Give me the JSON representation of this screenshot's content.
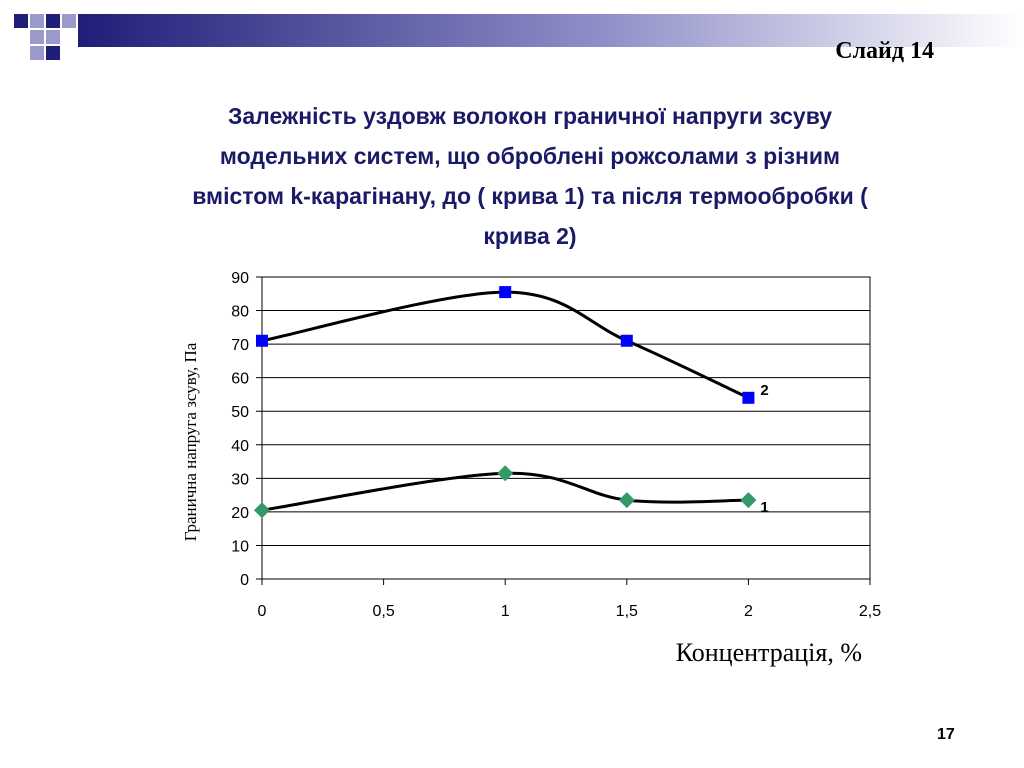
{
  "slide": {
    "label": "Слайд 14",
    "title": "Залежність уздовж волокон граничної напруги зсуву модельних систем, що оброблені рожсолами з різним вмістом k-карагінану, до ( крива 1) та після термообробки ( крива 2)",
    "page_number": "17"
  },
  "colors": {
    "decor_dark": "#1e1e78",
    "decor_light": "#9999cc",
    "title_color": "#1a1a66",
    "series1_marker": "#339966",
    "series2_marker": "#0000ff",
    "line": "#000000"
  },
  "chart_data": {
    "type": "line",
    "title": "",
    "xlabel": "Концентрація, %",
    "ylabel": "Гранична напруга зсуву, Па",
    "xlim": [
      0,
      2.5
    ],
    "ylim": [
      0,
      90
    ],
    "x_ticks": [
      "0",
      "0,5",
      "1",
      "1,5",
      "2",
      "2,5"
    ],
    "y_ticks": [
      "0",
      "10",
      "20",
      "30",
      "40",
      "50",
      "60",
      "70",
      "80",
      "90"
    ],
    "grid": true,
    "smooth": true,
    "series": [
      {
        "name": "1",
        "marker": "diamond",
        "x": [
          0,
          1,
          1.5,
          2
        ],
        "y": [
          20.5,
          31.5,
          23.5,
          23.5
        ]
      },
      {
        "name": "2",
        "marker": "square",
        "x": [
          0,
          1,
          1.5,
          2
        ],
        "y": [
          71,
          85.5,
          71,
          54
        ]
      }
    ]
  }
}
